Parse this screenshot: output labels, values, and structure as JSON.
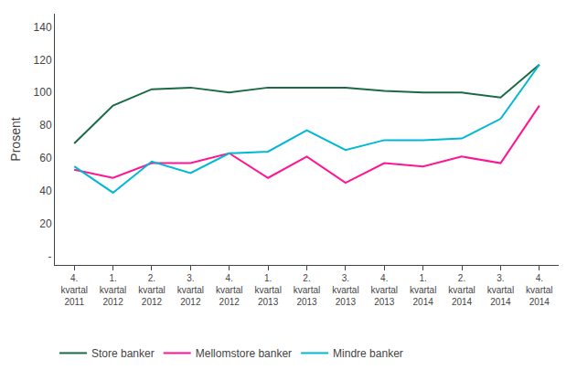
{
  "chart_data": {
    "type": "line",
    "categories": [
      "4.\nkvartal\n2011",
      "1.\nkvartal\n2012",
      "2.\nkvartal\n2012",
      "3.\nkvartal\n2012",
      "4.\nkvartal\n2012",
      "1.\nkvartal\n2013",
      "2.\nkvartal\n2013",
      "3.\nkvartal\n2013",
      "4.\nkvartal\n2013",
      "1.\nkvartal\n2014",
      "2.\nkvartal\n2014",
      "3.\nkvartal\n2014",
      "4.\nkvartal\n2014"
    ],
    "series": [
      {
        "name": "Store banker",
        "color": "#1a6b44",
        "values": [
          69,
          92,
          102,
          103,
          100,
          103,
          103,
          103,
          101,
          100,
          100,
          97,
          117
        ]
      },
      {
        "name": "Mellomstore banker",
        "color": "#ff1493",
        "values": [
          53,
          48,
          57,
          57,
          63,
          48,
          61,
          45,
          57,
          55,
          61,
          57,
          92
        ]
      },
      {
        "name": "Mindre banker",
        "color": "#00b8d4",
        "values": [
          55,
          39,
          58,
          51,
          63,
          64,
          77,
          65,
          71,
          71,
          72,
          84,
          117
        ]
      }
    ],
    "y_label": "Prosent",
    "ylim": [
      -5,
      148
    ],
    "yticks": [
      {
        "value": 0,
        "label": "-"
      },
      20,
      40,
      60,
      80,
      100,
      120,
      140
    ],
    "grid": false,
    "legend": "bottom"
  }
}
